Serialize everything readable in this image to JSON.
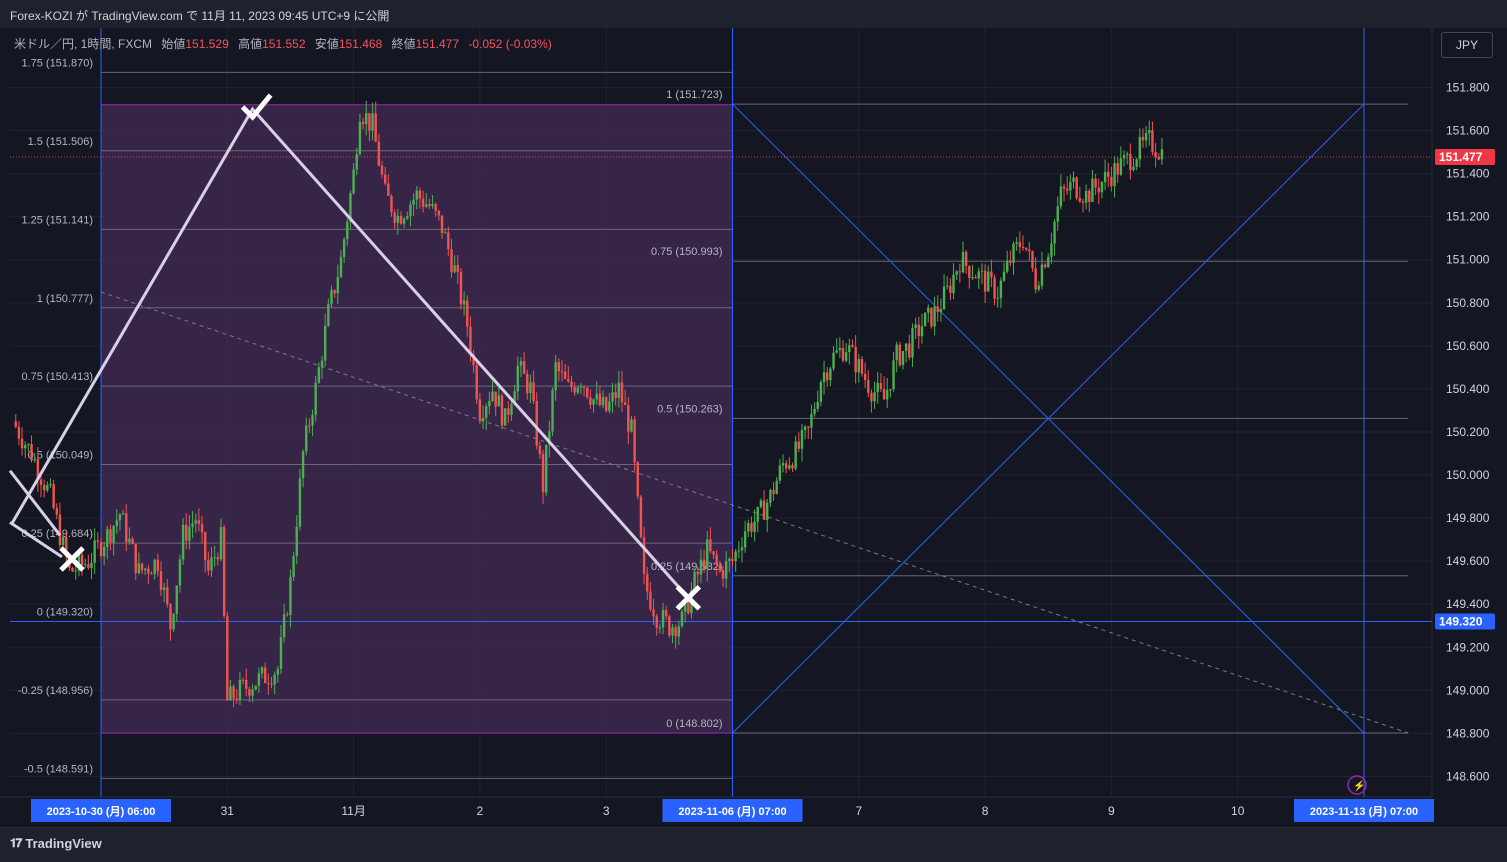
{
  "header": {
    "title": "Forex-KOZI が TradingView.com で 11月 11, 2023 09:45 UTC+9 に公開"
  },
  "legend": {
    "symbol": "米ドル／円, 1時間, FXCM",
    "open_label": "始値",
    "open": "151.529",
    "high_label": "高値",
    "high": "151.552",
    "low_label": "安値",
    "low": "151.468",
    "close_label": "終値",
    "close": "151.477",
    "change": "-0.052 (-0.03%)"
  },
  "currency_button": "JPY",
  "footer": {
    "brand": "TradingView",
    "logo": "TV-logo-icon"
  },
  "colors": {
    "up": "#26a69a",
    "down": "#ef5350",
    "up_candle": "#4caf50",
    "down_candle": "#f05350",
    "fib_box": "#4a2d5e",
    "fib_border": "#9c27b0",
    "blue": "#2962ff",
    "price_badge": "#f23645"
  },
  "chart_data": {
    "type": "candlestick",
    "title": "米ドル／円, 1時間, FXCM",
    "ylim": [
      148.5,
      151.95
    ],
    "y_ticks": [
      "151.800",
      "151.600",
      "151.400",
      "151.200",
      "151.000",
      "150.800",
      "150.600",
      "150.400",
      "150.200",
      "150.000",
      "149.800",
      "149.600",
      "149.400",
      "149.200",
      "149.000",
      "148.800",
      "148.600"
    ],
    "y_tick_values": [
      151.8,
      151.6,
      151.4,
      151.2,
      151.0,
      150.8,
      150.6,
      150.4,
      150.2,
      150.0,
      149.8,
      149.6,
      149.4,
      149.2,
      149.0,
      148.8,
      148.6
    ],
    "x_ticks": [
      "31",
      "11月",
      "2",
      "3",
      "7",
      "8",
      "9",
      "10"
    ],
    "x_tick_times": [
      1,
      2,
      3,
      4,
      6,
      7,
      8,
      9
    ],
    "x_highlight_labels": [
      {
        "label": "2023-10-30 (月)   06:00",
        "t": 0
      },
      {
        "label": "2023-11-06 (月)   07:00",
        "t": 5
      },
      {
        "label": "2023-11-13 (月)   07:00",
        "t": 10
      }
    ],
    "last_price": "151.477",
    "last_price_value": 151.477,
    "marked_price": "149.320",
    "marked_price_value": 149.32,
    "fib_left": {
      "levels": [
        {
          "label": "1.75 (151.870)",
          "value": 151.87
        },
        {
          "label": "1.5 (151.506)",
          "value": 151.506
        },
        {
          "label": "1.25 (151.141)",
          "value": 151.141
        },
        {
          "label": "1 (150.777)",
          "value": 150.777
        },
        {
          "label": "0.75 (150.413)",
          "value": 150.413
        },
        {
          "label": "0.5 (150.049)",
          "value": 150.049
        },
        {
          "label": "0.25 (149.684)",
          "value": 149.684
        },
        {
          "label": "0 (149.320)",
          "value": 149.32
        },
        {
          "label": "-0.25 (148.956)",
          "value": 148.956
        },
        {
          "label": "-0.5 (148.591)",
          "value": 148.591
        }
      ]
    },
    "fib_right": {
      "levels": [
        {
          "label": "1 (151.723)",
          "value": 151.723
        },
        {
          "label": "0.75 (150.993)",
          "value": 150.993
        },
        {
          "label": "0.5 (150.263)",
          "value": 150.263
        },
        {
          "label": "0.25 (149.532)",
          "value": 149.532
        },
        {
          "label": "0 (148.802)",
          "value": 148.802
        }
      ]
    },
    "swing_line": [
      {
        "t": -0.7,
        "v": 149.78
      },
      {
        "t": 1.2,
        "v": 151.7
      },
      {
        "t": 4.65,
        "v": 149.43
      }
    ],
    "candles_close_path": [
      [
        -0.7,
        150.25
      ],
      [
        -0.55,
        150.1
      ],
      [
        -0.4,
        149.9
      ],
      [
        -0.25,
        149.55
      ],
      [
        -0.1,
        149.6
      ],
      [
        0.05,
        149.72
      ],
      [
        0.15,
        149.82
      ],
      [
        0.3,
        149.55
      ],
      [
        0.45,
        149.6
      ],
      [
        0.55,
        149.3
      ],
      [
        0.65,
        149.72
      ],
      [
        0.75,
        149.8
      ],
      [
        0.85,
        149.55
      ],
      [
        0.95,
        149.7
      ],
      [
        1.0,
        148.95
      ],
      [
        1.1,
        149.0
      ],
      [
        1.25,
        149.05
      ],
      [
        1.4,
        149.1
      ],
      [
        1.5,
        149.5
      ],
      [
        1.6,
        150.1
      ],
      [
        1.7,
        150.4
      ],
      [
        1.8,
        150.75
      ],
      [
        1.9,
        151.0
      ],
      [
        2.0,
        151.4
      ],
      [
        2.05,
        151.7
      ],
      [
        2.15,
        151.62
      ],
      [
        2.25,
        151.3
      ],
      [
        2.35,
        151.2
      ],
      [
        2.5,
        151.3
      ],
      [
        2.6,
        151.25
      ],
      [
        2.7,
        151.15
      ],
      [
        2.8,
        150.95
      ],
      [
        2.9,
        150.7
      ],
      [
        3.0,
        150.3
      ],
      [
        3.1,
        150.4
      ],
      [
        3.2,
        150.25
      ],
      [
        3.3,
        150.5
      ],
      [
        3.4,
        150.4
      ],
      [
        3.5,
        149.95
      ],
      [
        3.6,
        150.5
      ],
      [
        3.7,
        150.4
      ],
      [
        3.8,
        150.45
      ],
      [
        3.9,
        150.35
      ],
      [
        4.0,
        150.3
      ],
      [
        4.1,
        150.4
      ],
      [
        4.2,
        150.2
      ],
      [
        4.3,
        149.5
      ],
      [
        4.4,
        149.35
      ],
      [
        4.5,
        149.3
      ],
      [
        4.6,
        149.32
      ],
      [
        4.7,
        149.5
      ],
      [
        4.8,
        149.65
      ],
      [
        4.9,
        149.55
      ],
      [
        5.0,
        149.6
      ],
      [
        5.1,
        149.75
      ],
      [
        5.2,
        149.8
      ],
      [
        5.3,
        149.9
      ],
      [
        5.4,
        150.05
      ],
      [
        5.5,
        150.1
      ],
      [
        5.6,
        150.2
      ],
      [
        5.7,
        150.45
      ],
      [
        5.8,
        150.55
      ],
      [
        5.9,
        150.6
      ],
      [
        6.0,
        150.5
      ],
      [
        6.1,
        150.4
      ],
      [
        6.2,
        150.35
      ],
      [
        6.3,
        150.55
      ],
      [
        6.4,
        150.6
      ],
      [
        6.5,
        150.7
      ],
      [
        6.6,
        150.75
      ],
      [
        6.7,
        150.85
      ],
      [
        6.8,
        151.0
      ],
      [
        6.9,
        150.95
      ],
      [
        7.0,
        150.9
      ],
      [
        7.1,
        150.85
      ],
      [
        7.2,
        151.0
      ],
      [
        7.3,
        151.1
      ],
      [
        7.4,
        150.9
      ],
      [
        7.5,
        151.05
      ],
      [
        7.6,
        151.3
      ],
      [
        7.7,
        151.35
      ],
      [
        7.8,
        151.3
      ],
      [
        7.9,
        151.35
      ],
      [
        8.0,
        151.4
      ],
      [
        8.1,
        151.45
      ],
      [
        8.2,
        151.5
      ],
      [
        8.3,
        151.55
      ],
      [
        8.4,
        151.5
      ]
    ]
  }
}
